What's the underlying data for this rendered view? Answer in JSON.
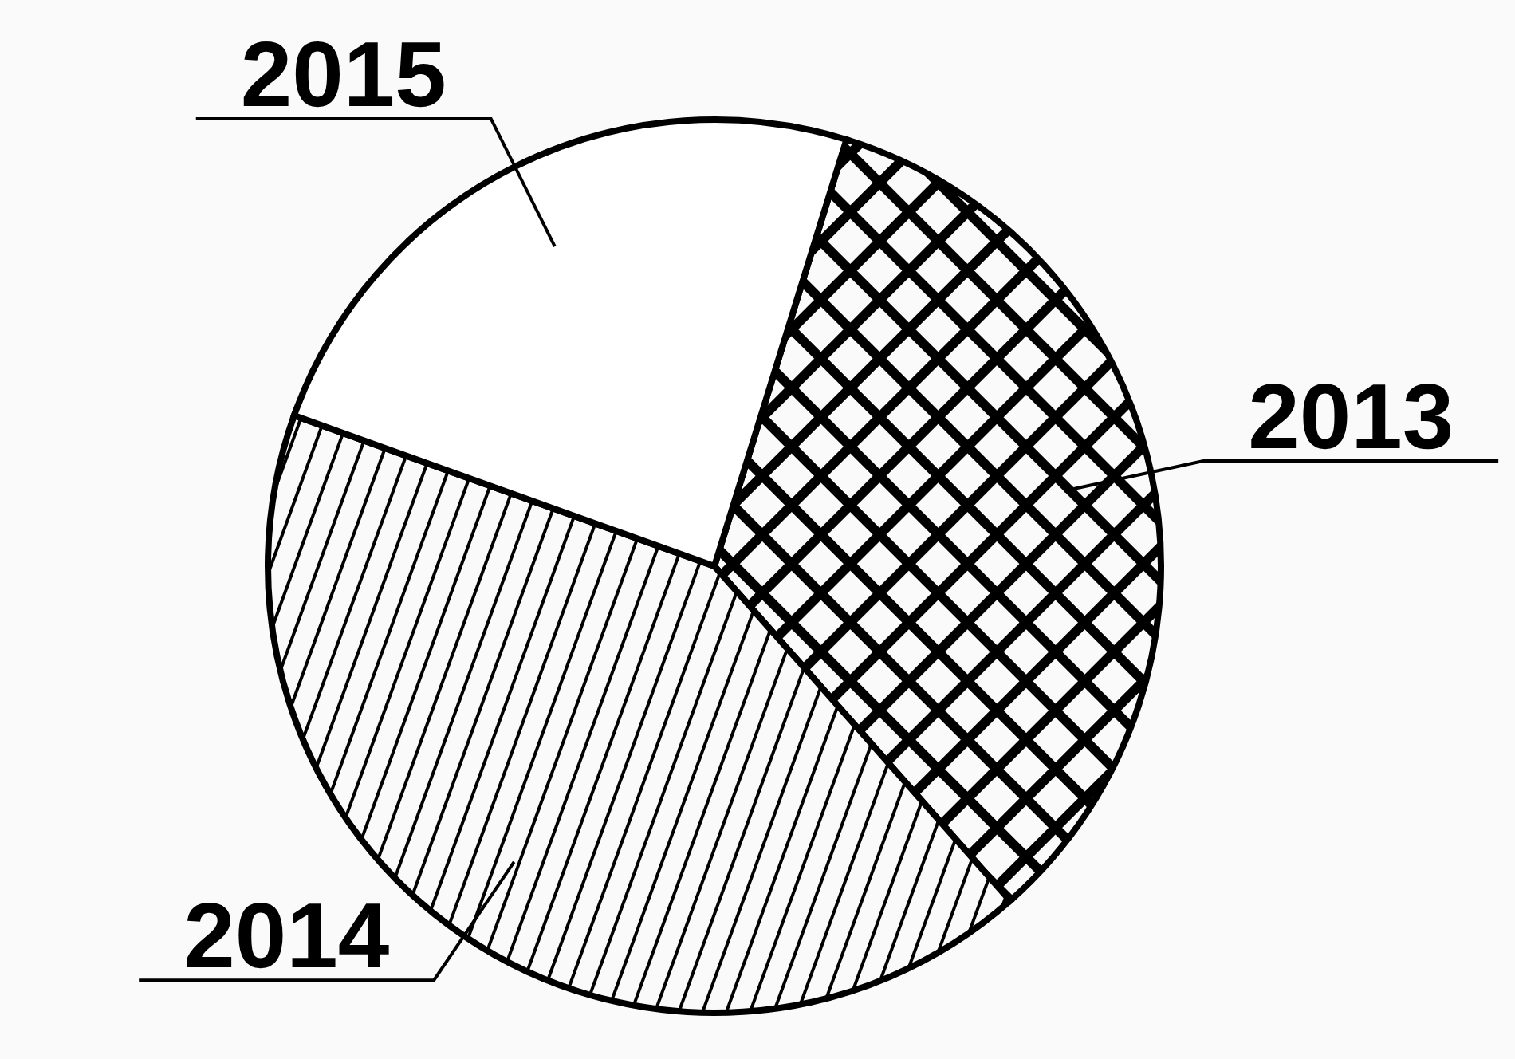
{
  "chart_data": {
    "type": "pie",
    "categories": [
      "2013",
      "2014",
      "2015"
    ],
    "values": [
      33.7,
      42,
      24.3
    ],
    "colors": [
      "#000000",
      "#000000",
      "#ffffff"
    ]
  }
}
